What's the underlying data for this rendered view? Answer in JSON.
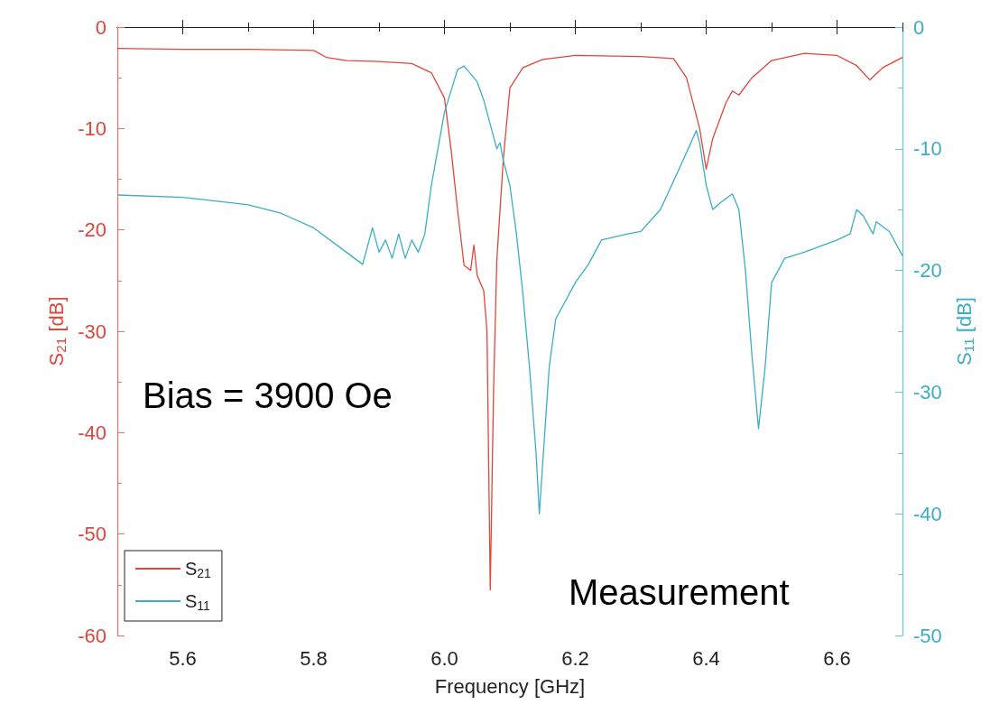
{
  "chart_data": {
    "type": "line",
    "xlabel": "Frequency [GHz]",
    "ylabel": "S$_{21}$ [dB]",
    "y2label": "S$_{11}$ [dB]",
    "xlim": [
      5.5,
      6.7
    ],
    "xticks": [
      5.6,
      5.8,
      {
        "value": 6.0,
        "label": "6.0"
      },
      6.2,
      6.4,
      6.6
    ],
    "ylim": [
      -60,
      0
    ],
    "yticks": [
      -60,
      -50,
      -40,
      -30,
      -20,
      -10,
      0
    ],
    "y2lim": [
      -50,
      0
    ],
    "y2ticks": [
      -50,
      -40,
      -30,
      -20,
      -10,
      0
    ],
    "grid": false,
    "legend": "bottom left",
    "line_style": "solid",
    "marker": "none",
    "annotations": [
      "Bias = 3900 Oe",
      "Measurement"
    ],
    "series": [
      {
        "name": "S$_{21}$",
        "color": "#e0463c",
        "x": [
          5.5,
          5.6,
          5.7,
          5.8,
          5.82,
          5.85,
          5.9,
          5.95,
          5.98,
          6.0,
          6.01,
          6.02,
          6.03,
          6.04,
          6.045,
          6.05,
          6.06,
          6.065,
          6.07,
          6.075,
          6.08,
          6.09,
          6.1,
          6.12,
          6.15,
          6.2,
          6.3,
          6.35,
          6.37,
          6.39,
          6.4,
          6.41,
          6.43,
          6.44,
          6.45,
          6.47,
          6.5,
          6.55,
          6.6,
          6.63,
          6.65,
          6.67,
          6.7
        ],
        "values": [
          -2.1,
          -2.2,
          -2.2,
          -2.3,
          -3.0,
          -3.3,
          -3.4,
          -3.6,
          -4.5,
          -7,
          -12,
          -18,
          -23.5,
          -24,
          -21.5,
          -24.5,
          -26,
          -30,
          -55.5,
          -36,
          -23,
          -13,
          -6,
          -4,
          -3.2,
          -2.8,
          -2.9,
          -3.1,
          -5,
          -10,
          -14,
          -11,
          -7.5,
          -6.3,
          -6.7,
          -5,
          -3.3,
          -2.6,
          -2.8,
          -3.8,
          -5.2,
          -4,
          -3
        ]
      },
      {
        "name": "S$_{11}$",
        "color": "#3aaec6",
        "axis": "y2",
        "x": [
          5.5,
          5.6,
          5.7,
          5.75,
          5.8,
          5.85,
          5.875,
          5.88,
          5.89,
          5.9,
          5.91,
          5.92,
          5.93,
          5.94,
          5.95,
          5.96,
          5.97,
          5.98,
          6.0,
          6.02,
          6.03,
          6.05,
          6.06,
          6.07,
          6.08,
          6.085,
          6.09,
          6.1,
          6.11,
          6.12,
          6.13,
          6.14,
          6.145,
          6.15,
          6.16,
          6.17,
          6.2,
          6.22,
          6.24,
          6.28,
          6.3,
          6.33,
          6.36,
          6.385,
          6.39,
          6.4,
          6.41,
          6.42,
          6.44,
          6.45,
          6.46,
          6.47,
          6.48,
          6.49,
          6.5,
          6.52,
          6.55,
          6.6,
          6.62,
          6.63,
          6.64,
          6.655,
          6.66,
          6.68,
          6.7
        ],
        "values": [
          -13.8,
          -14.0,
          -14.6,
          -15.3,
          -16.5,
          -18.5,
          -19.5,
          -18.5,
          -16.5,
          -18.5,
          -17.5,
          -19,
          -17,
          -19,
          -17.5,
          -18.5,
          -17,
          -13,
          -7,
          -3.5,
          -3.2,
          -4.5,
          -6,
          -8,
          -10,
          -9.5,
          -11,
          -13,
          -17,
          -22,
          -28,
          -35,
          -40,
          -36,
          -28,
          -24,
          -21,
          -19.5,
          -17.5,
          -17,
          -16.8,
          -15,
          -11.5,
          -8.5,
          -9.5,
          -13,
          -15,
          -14.5,
          -13.7,
          -15,
          -20,
          -27,
          -33,
          -28,
          -21,
          -19,
          -18.5,
          -17.5,
          -17,
          -15,
          -15.5,
          -17,
          -16,
          -16.8,
          -18.8
        ]
      }
    ]
  }
}
